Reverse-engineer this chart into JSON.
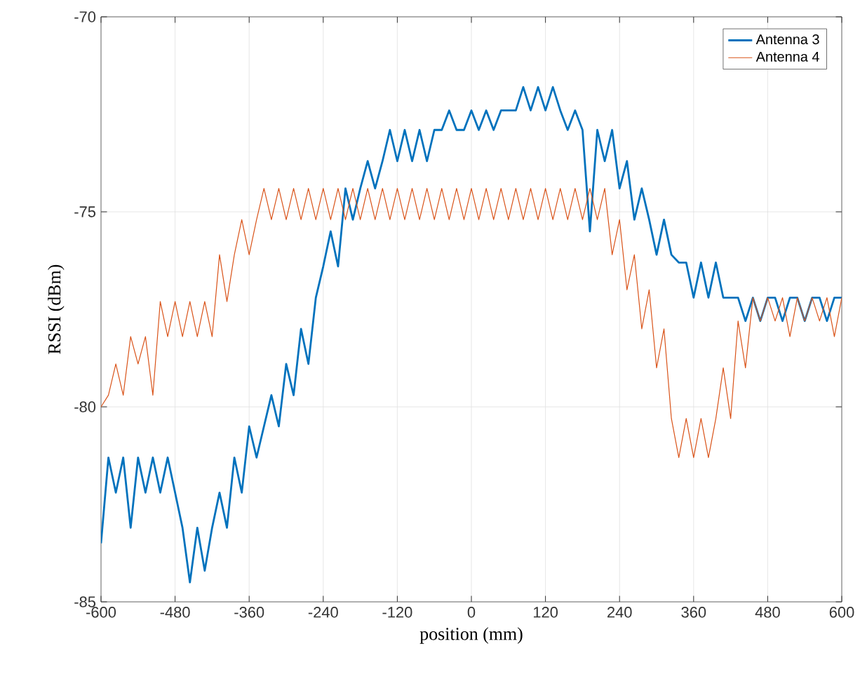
{
  "chart_data": {
    "type": "line",
    "xlabel": "position (mm)",
    "ylabel": "RSSI (dBm)",
    "x": [
      -600,
      -588,
      -576,
      -564,
      -552,
      -540,
      -528,
      -516,
      -504,
      -492,
      -480,
      -468,
      -456,
      -444,
      -432,
      -420,
      -408,
      -396,
      -384,
      -372,
      -360,
      -348,
      -336,
      -324,
      -312,
      -300,
      -288,
      -276,
      -264,
      -252,
      -240,
      -228,
      -216,
      -204,
      -192,
      -180,
      -168,
      -156,
      -144,
      -132,
      -120,
      -108,
      -96,
      -84,
      -72,
      -60,
      -48,
      -36,
      -24,
      -12,
      0,
      12,
      24,
      36,
      48,
      60,
      72,
      84,
      96,
      108,
      120,
      132,
      144,
      156,
      168,
      180,
      192,
      204,
      216,
      228,
      240,
      252,
      264,
      276,
      288,
      300,
      312,
      324,
      336,
      348,
      360,
      372,
      384,
      396,
      408,
      420,
      432,
      444,
      456,
      468,
      480,
      492,
      504,
      516,
      528,
      540,
      552,
      564,
      576,
      588,
      600
    ],
    "series": [
      {
        "name": "Antenna 3",
        "color": "#0072bd",
        "values": [
          -83.5,
          -81.3,
          -82.2,
          -81.3,
          -83.1,
          -81.3,
          -82.2,
          -81.3,
          -82.2,
          -81.3,
          -82.2,
          -83.1,
          -84.5,
          -83.1,
          -84.2,
          -83.1,
          -82.2,
          -83.1,
          -81.3,
          -82.2,
          -80.5,
          -81.3,
          -80.5,
          -79.7,
          -80.5,
          -78.9,
          -79.7,
          -78.0,
          -78.9,
          -77.2,
          -76.4,
          -75.5,
          -76.4,
          -74.4,
          -75.2,
          -74.4,
          -73.7,
          -74.4,
          -73.7,
          -72.9,
          -73.7,
          -72.9,
          -73.7,
          -72.9,
          -73.7,
          -72.9,
          -72.9,
          -72.4,
          -72.9,
          -72.9,
          -72.4,
          -72.9,
          -72.4,
          -72.9,
          -72.4,
          -72.4,
          -72.4,
          -71.8,
          -72.4,
          -71.8,
          -72.4,
          -71.8,
          -72.4,
          -72.9,
          -72.4,
          -72.9,
          -75.5,
          -72.9,
          -73.7,
          -72.9,
          -74.4,
          -73.7,
          -75.2,
          -74.4,
          -75.2,
          -76.1,
          -75.2,
          -76.1,
          -76.3,
          -76.3,
          -77.2,
          -76.3,
          -77.2,
          -76.3,
          -77.2,
          -77.2,
          -77.2,
          -77.8,
          -77.2,
          -77.8,
          -77.2,
          -77.2,
          -77.8,
          -77.2,
          -77.2,
          -77.8,
          -77.2,
          -77.2,
          -77.8,
          -77.2,
          -77.2
        ]
      },
      {
        "name": "Antenna 4",
        "color": "#d95319",
        "values": [
          -80.0,
          -79.7,
          -78.9,
          -79.7,
          -78.2,
          -78.9,
          -78.2,
          -79.7,
          -77.3,
          -78.2,
          -77.3,
          -78.2,
          -77.3,
          -78.2,
          -77.3,
          -78.2,
          -76.1,
          -77.3,
          -76.1,
          -75.2,
          -76.1,
          -75.2,
          -74.4,
          -75.2,
          -74.4,
          -75.2,
          -74.4,
          -75.2,
          -74.4,
          -75.2,
          -74.4,
          -75.2,
          -74.4,
          -75.2,
          -74.4,
          -75.2,
          -74.4,
          -75.2,
          -74.4,
          -75.2,
          -74.4,
          -75.2,
          -74.4,
          -75.2,
          -74.4,
          -75.2,
          -74.4,
          -75.2,
          -74.4,
          -75.2,
          -74.4,
          -75.2,
          -74.4,
          -75.2,
          -74.4,
          -75.2,
          -74.4,
          -75.2,
          -74.4,
          -75.2,
          -74.4,
          -75.2,
          -74.4,
          -75.2,
          -74.4,
          -75.2,
          -74.4,
          -75.2,
          -74.4,
          -76.1,
          -75.2,
          -77.0,
          -76.1,
          -78.0,
          -77.0,
          -79.0,
          -78.0,
          -80.3,
          -81.3,
          -80.3,
          -81.3,
          -80.3,
          -81.3,
          -80.3,
          -79.0,
          -80.3,
          -77.8,
          -79.0,
          -77.2,
          -77.8,
          -77.2,
          -77.8,
          -77.2,
          -78.2,
          -77.2,
          -77.8,
          -77.2,
          -77.8,
          -77.2,
          -78.2,
          -77.2
        ]
      }
    ],
    "xlim": [
      -600,
      600
    ],
    "ylim": [
      -85,
      -70
    ],
    "xticks": [
      -600,
      -480,
      -360,
      -240,
      -120,
      0,
      120,
      240,
      360,
      480,
      600
    ],
    "yticks": [
      -85,
      -80,
      -75,
      -70
    ],
    "grid": true,
    "legend": "top right",
    "line_style": "solid",
    "marker": "none"
  }
}
